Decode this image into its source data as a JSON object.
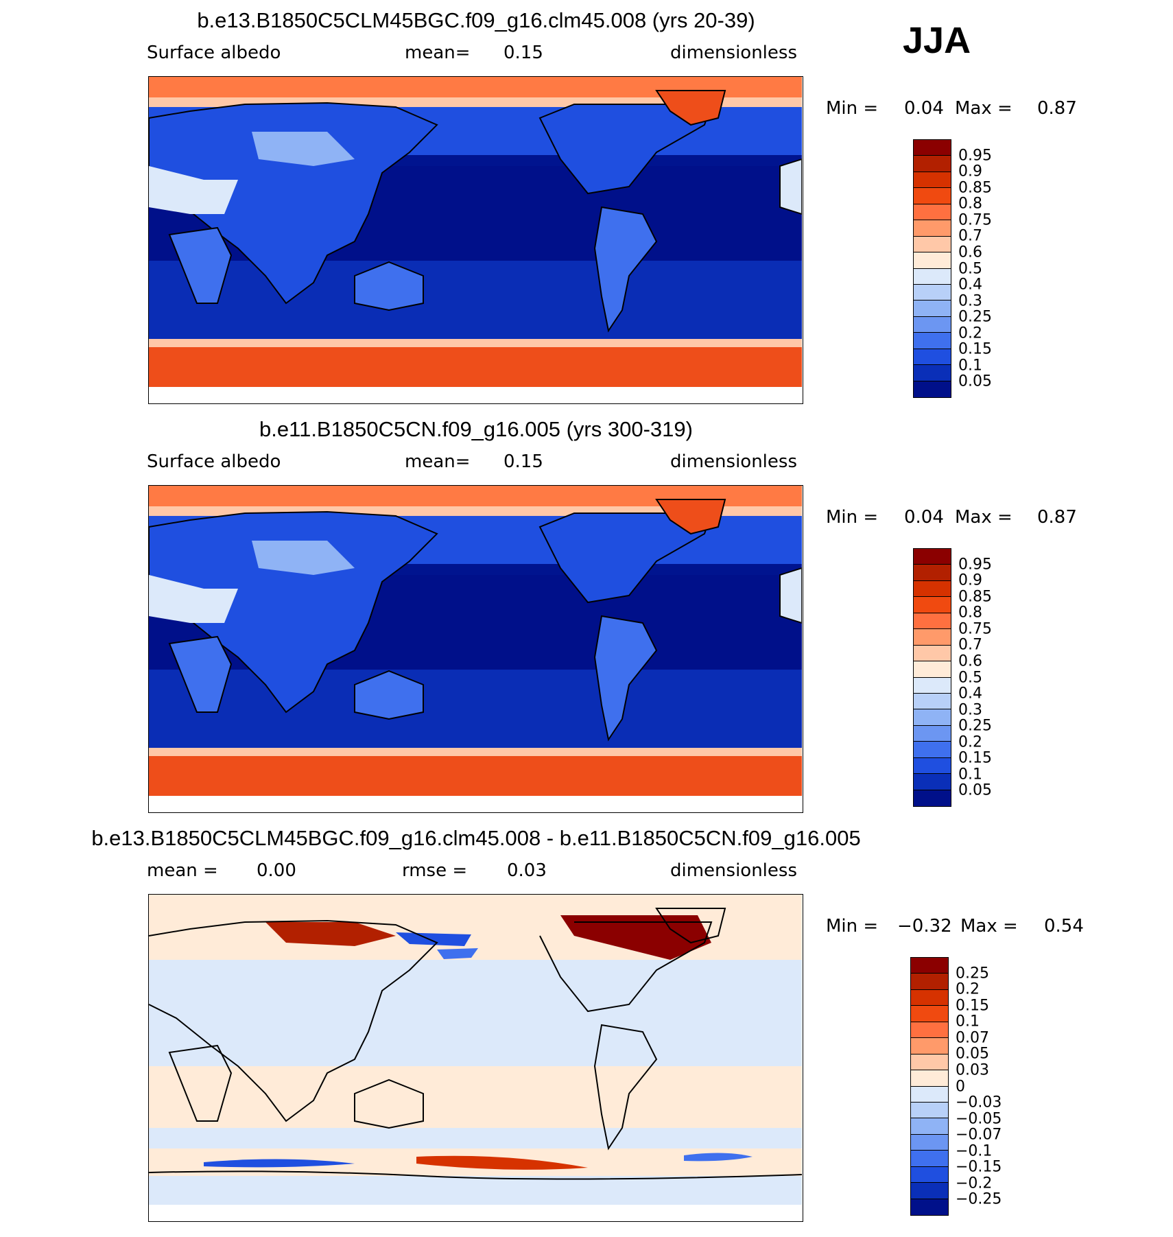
{
  "season": "JJA",
  "panels": [
    {
      "title": "b.e13.B1850C5CLM45BGC.f09_g16.clm45.008 (yrs 20-39)",
      "left_label": "Surface  albedo",
      "mid_label": "mean=",
      "mid_value": "0.15",
      "right_label": "dimensionless",
      "min_label": "Min  =",
      "min_value": "0.04",
      "max_label": "Max  =",
      "max_value": "0.87",
      "colorbar_labels": [
        "0.95",
        "0.9",
        "0.85",
        "0.8",
        "0.75",
        "0.7",
        "0.6",
        "0.5",
        "0.4",
        "0.3",
        "0.25",
        "0.2",
        "0.15",
        "0.1",
        "0.05"
      ]
    },
    {
      "title": "b.e11.B1850C5CN.f09_g16.005 (yrs 300-319)",
      "left_label": "Surface  albedo",
      "mid_label": "mean=",
      "mid_value": "0.15",
      "right_label": "dimensionless",
      "min_label": "Min  =",
      "min_value": "0.04",
      "max_label": "Max  =",
      "max_value": "0.87",
      "colorbar_labels": [
        "0.95",
        "0.9",
        "0.85",
        "0.8",
        "0.75",
        "0.7",
        "0.6",
        "0.5",
        "0.4",
        "0.3",
        "0.25",
        "0.2",
        "0.15",
        "0.1",
        "0.05"
      ]
    },
    {
      "title": "b.e13.B1850C5CLM45BGC.f09_g16.clm45.008 - b.e11.B1850C5CN.f09_g16.005",
      "left_label": "mean  =",
      "left_value": "0.00",
      "mid_label": "rmse  =",
      "mid_value": "0.03",
      "right_label": "dimensionless",
      "min_label": "Min  =",
      "min_value": "−0.32",
      "max_label": "Max  =",
      "max_value": "0.54",
      "colorbar_labels": [
        "0.25",
        "0.2",
        "0.15",
        "0.1",
        "0.07",
        "0.05",
        "0.03",
        "0",
        "−0.03",
        "−0.05",
        "−0.07",
        "−0.1",
        "−0.15",
        "−0.2",
        "−0.25"
      ]
    }
  ],
  "colors": {
    "abs_scale": [
      "#8b0000",
      "#b22000",
      "#d63200",
      "#f04a10",
      "#ff7040",
      "#ff9a6a",
      "#ffc8a8",
      "#ffebd8",
      "#dce9fa",
      "#b8d0f8",
      "#8fb3f5",
      "#6c96f2",
      "#3f70ee",
      "#1f4fe0",
      "#0a2fb8",
      "#00108a"
    ],
    "diff_scale": [
      "#8b0000",
      "#b22000",
      "#d63200",
      "#f04a10",
      "#ff7040",
      "#ff9a6a",
      "#ffc8a8",
      "#ffebd8",
      "#dce9fa",
      "#b8d0f8",
      "#8fb3f5",
      "#6c96f2",
      "#3f70ee",
      "#1f4fe0",
      "#0a2fb8",
      "#00108a"
    ],
    "ocean_abs": "#00148f",
    "ocean_abs_mid": "#0a2db5",
    "land_abs": "#1f4fe0",
    "ice": "#ee4e1a",
    "diff_bg_pos": "#ffebd8",
    "diff_bg_neg": "#dce9fa"
  }
}
